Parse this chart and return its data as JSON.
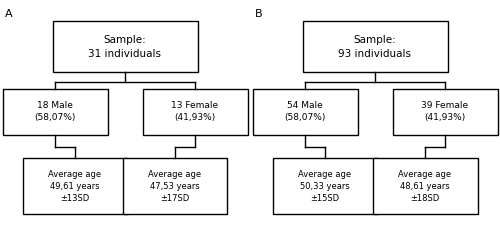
{
  "panel_A": {
    "label": "A",
    "root_text": "Sample:\n31 individuals",
    "left_text": "18 Male\n(58,07%)",
    "right_text": "13 Female\n(41,93%)",
    "left_age_text": "Average age\n49,61 years\n±13SD",
    "right_age_text": "Average age\n47,53 years\n±17SD"
  },
  "panel_B": {
    "label": "B",
    "root_text": "Sample:\n93 individuals",
    "left_text": "54 Male\n(58,07%)",
    "right_text": "39 Female\n(41,93%)",
    "left_age_text": "Average age\n50,33 years\n±15SD",
    "right_age_text": "Average age\n48,61 years\n±18SD"
  },
  "box_color": "#ffffff",
  "edge_color": "#000000",
  "text_color": "#000000",
  "bg_color": "#ffffff",
  "font_size_root": 7.5,
  "font_size_mid": 6.5,
  "font_size_leaf": 6.0,
  "label_fontsize": 8
}
